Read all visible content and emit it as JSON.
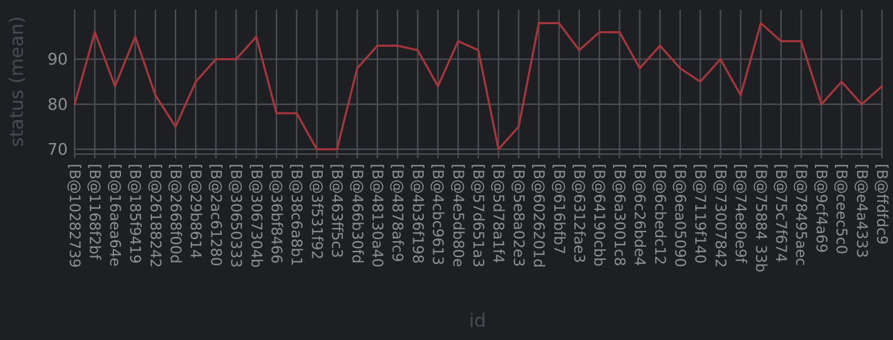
{
  "chart_data": {
    "type": "line",
    "xlabel": "id",
    "ylabel": "status (mean)",
    "ylim": [
      68,
      101
    ],
    "yticks": [
      70,
      80,
      90
    ],
    "grid": true,
    "colors": {
      "background": "#1e1f23",
      "grid": "#4d4e53",
      "line": "#a5363c",
      "tick_text": "#8e8f93",
      "axis_title": "#4a4b50"
    },
    "categories": [
      "[B@10282739",
      "[B@1168f2bf",
      "[B@16aea64e",
      "[B@185f9419",
      "[B@26188242",
      "[B@2668f00d",
      "[B@29b8614",
      "[B@2ac61280",
      "[B@30650333",
      "[B@3067304b",
      "[B@36bf8466",
      "[B@38c6a8b1",
      "[B@3f531f92",
      "[B@463ff5c3",
      "[B@466b30fd",
      "[B@48130a40",
      "[B@4878afc9",
      "[B@4b36f198",
      "[B@4cbc9613",
      "[B@4e5db80e",
      "[B@57d651a3",
      "[B@5d78a1f4",
      "[B@5e8a02e3",
      "[B@6026201d",
      "[B@616bfb7",
      "[B@6312fae3",
      "[B@64190cbb",
      "[B@6a3001c8",
      "[B@6c26bde4",
      "[B@6cbedc12",
      "[B@6ea05090",
      "[B@7119f140",
      "[B@73007842",
      "[B@74e80e9f",
      "[B@75884 33b",
      "[B@75c7f674",
      "[B@78495aec",
      "[B@9cf4a69",
      "[B@ceec5c0",
      "[B@e4a4333",
      "[B@ffdfdc9"
    ],
    "series": [
      {
        "values": [
          80,
          96,
          84,
          95,
          82,
          75,
          85,
          90,
          90,
          95,
          78,
          78,
          70,
          70,
          88,
          93,
          93,
          92,
          84,
          94,
          92,
          70,
          75,
          98,
          98,
          92,
          96,
          96,
          88,
          93,
          88,
          85,
          90,
          82,
          98,
          94,
          94,
          80,
          85,
          80,
          84
        ]
      }
    ]
  }
}
